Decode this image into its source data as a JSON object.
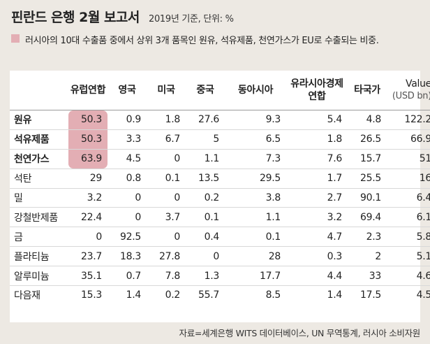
{
  "header": {
    "title": "핀란드 은행 2월 보고서",
    "subtitle": "2019년 기준, 단위: %"
  },
  "legend": {
    "text": "러시아의 10대 수출품 중에서 상위 3개 품목인 원유, 석유제품, 천연가스가 EU로 수출되는 비중.",
    "color": "#e3aeb4"
  },
  "chart_data": {
    "type": "table",
    "title": "핀란드 은행 2월 보고서",
    "subtitle": "2019년 기준, 단위: %",
    "columns": [
      "유럽연합",
      "영국",
      "미국",
      "중국",
      "동아시아",
      "유라시아경제연합",
      "타국가"
    ],
    "value_column": "Value",
    "value_unit": "(USD bn)",
    "highlight_color": "#e3aeb4",
    "rows": [
      {
        "name": "원유",
        "bold": true,
        "highlight": true,
        "values": [
          "50.3",
          "0.9",
          "1.8",
          "27.6",
          "9.3",
          "5.4",
          "4.8"
        ],
        "value": "122.2"
      },
      {
        "name": "석유제품",
        "bold": true,
        "highlight": true,
        "values": [
          "50.3",
          "3.3",
          "6.7",
          "5",
          "6.5",
          "1.8",
          "26.5"
        ],
        "value": "66.9"
      },
      {
        "name": "천연가스",
        "bold": true,
        "highlight": true,
        "values": [
          "63.9",
          "4.5",
          "0",
          "1.1",
          "7.3",
          "7.6",
          "15.7"
        ],
        "value": "51"
      },
      {
        "name": "석탄",
        "bold": false,
        "highlight": false,
        "values": [
          "29",
          "0.8",
          "0.1",
          "13.5",
          "29.5",
          "1.7",
          "25.5"
        ],
        "value": "16"
      },
      {
        "name": "밀",
        "bold": false,
        "highlight": false,
        "values": [
          "3.2",
          "0",
          "0",
          "0.2",
          "3.8",
          "2.7",
          "90.1"
        ],
        "value": "6.4"
      },
      {
        "name": "강철반제품",
        "bold": false,
        "highlight": false,
        "values": [
          "22.4",
          "0",
          "3.7",
          "0.1",
          "1.1",
          "3.2",
          "69.4"
        ],
        "value": "6.1"
      },
      {
        "name": "금",
        "bold": false,
        "highlight": false,
        "values": [
          "0",
          "92.5",
          "0",
          "0.4",
          "0.1",
          "4.7",
          "2.3"
        ],
        "value": "5.8"
      },
      {
        "name": "플라티늄",
        "bold": false,
        "highlight": false,
        "values": [
          "23.7",
          "18.3",
          "27.8",
          "0",
          "28",
          "0.3",
          "2"
        ],
        "value": "5.1"
      },
      {
        "name": "알루미늄",
        "bold": false,
        "highlight": false,
        "values": [
          "35.1",
          "0.7",
          "7.8",
          "1.3",
          "17.7",
          "4.4",
          "33"
        ],
        "value": "4.6"
      },
      {
        "name": "다음재",
        "bold": false,
        "highlight": false,
        "values": [
          "15.3",
          "1.4",
          "0.2",
          "55.7",
          "8.5",
          "1.4",
          "17.5"
        ],
        "value": "4.5"
      }
    ]
  },
  "source": "자료=세계은행 WITS 데이터베이스, UN 무역통계, 러시아 소비자원"
}
